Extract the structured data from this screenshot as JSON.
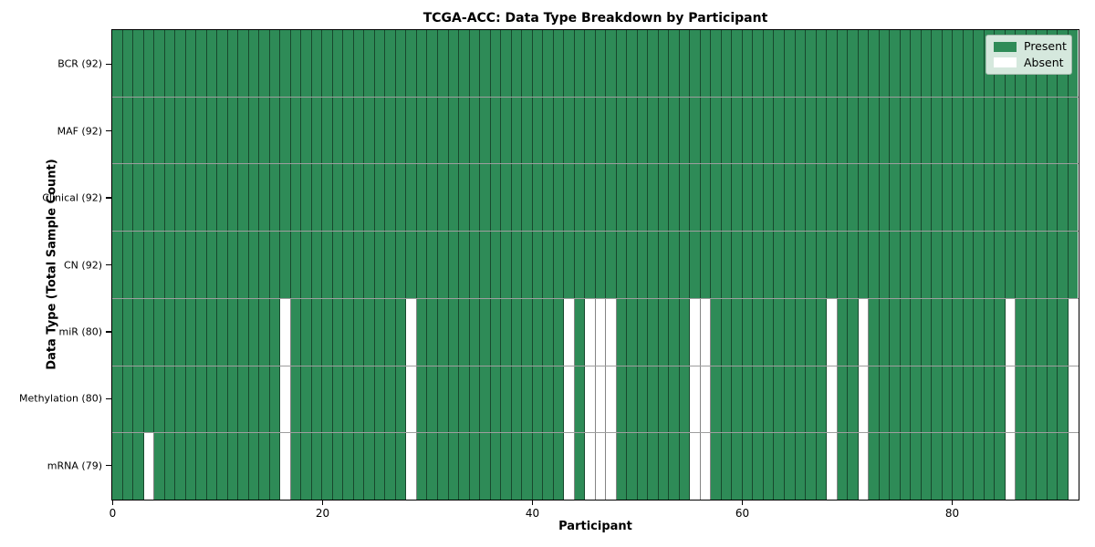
{
  "chart_data": {
    "type": "heatmap",
    "title": "TCGA-ACC: Data Type Breakdown by Participant",
    "xlabel": "Participant",
    "ylabel": "Data Type (Total Sample Count)",
    "n_participants": 92,
    "x_ticks": [
      0,
      20,
      40,
      60,
      80
    ],
    "x_range": [
      0,
      92
    ],
    "grid": "on",
    "colors": {
      "present": "#2e8b57",
      "absent": "#ffffff",
      "grid_line": "rgba(0,0,0,0.45)",
      "legend_bg": "#d5e8dd",
      "spine": "#000000"
    },
    "legend": {
      "position": "upper right",
      "items": [
        {
          "label": "Present",
          "color": "#2e8b57"
        },
        {
          "label": "Absent",
          "color": "#ffffff"
        }
      ]
    },
    "rows": [
      {
        "label": "BCR (92)",
        "data_type": "BCR",
        "present_count": 92,
        "absent_participants": []
      },
      {
        "label": "MAF (92)",
        "data_type": "MAF",
        "present_count": 92,
        "absent_participants": []
      },
      {
        "label": "Clinical (92)",
        "data_type": "Clinical",
        "present_count": 92,
        "absent_participants": []
      },
      {
        "label": "CN (92)",
        "data_type": "CN",
        "present_count": 92,
        "absent_participants": []
      },
      {
        "label": "miR (80)",
        "data_type": "miR",
        "present_count": 80,
        "absent_participants": [
          16,
          28,
          43,
          45,
          46,
          47,
          55,
          56,
          68,
          71,
          85,
          91
        ]
      },
      {
        "label": "Methylation (80)",
        "data_type": "Methylation",
        "present_count": 80,
        "absent_participants": [
          16,
          28,
          43,
          45,
          46,
          47,
          55,
          56,
          68,
          71,
          85,
          91
        ]
      },
      {
        "label": "mRNA (79)",
        "data_type": "mRNA",
        "present_count": 79,
        "absent_participants": [
          3,
          16,
          28,
          43,
          45,
          46,
          47,
          55,
          56,
          68,
          71,
          85,
          91
        ]
      }
    ]
  }
}
